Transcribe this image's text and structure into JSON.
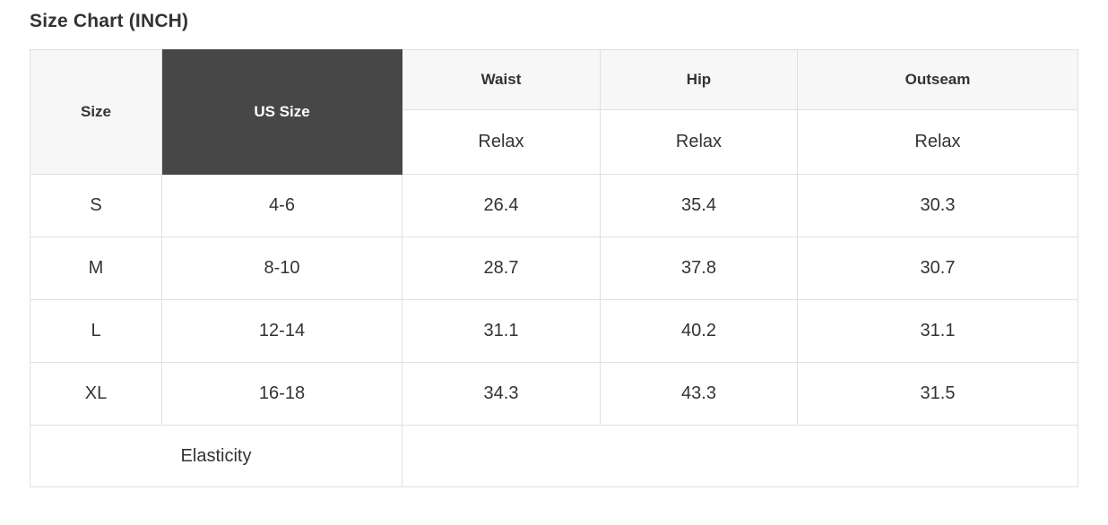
{
  "page": {
    "title": "Size Chart (INCH)"
  },
  "size_chart": {
    "columns": [
      "Size",
      "US Size",
      "Waist",
      "Hip",
      "Outseam"
    ],
    "fit_subheaders": [
      "Relax",
      "Relax",
      "Relax"
    ],
    "rows": [
      {
        "size": "S",
        "us_size": "4-6",
        "waist": "26.4",
        "hip": "35.4",
        "outseam": "30.3"
      },
      {
        "size": "M",
        "us_size": "8-10",
        "waist": "28.7",
        "hip": "37.8",
        "outseam": "30.7"
      },
      {
        "size": "L",
        "us_size": "12-14",
        "waist": "31.1",
        "hip": "40.2",
        "outseam": "31.1"
      },
      {
        "size": "XL",
        "us_size": "16-18",
        "waist": "34.3",
        "hip": "43.3",
        "outseam": "31.5"
      }
    ],
    "footer_row": {
      "label": "Elasticity",
      "value": ""
    }
  },
  "chart_data": {
    "type": "table",
    "title": "Size Chart (INCH)",
    "columns": [
      "Size",
      "US Size",
      "Waist (Relax)",
      "Hip (Relax)",
      "Outseam (Relax)"
    ],
    "rows": [
      [
        "S",
        "4-6",
        26.4,
        35.4,
        30.3
      ],
      [
        "M",
        "8-10",
        28.7,
        37.8,
        30.7
      ],
      [
        "L",
        "12-14",
        31.1,
        40.2,
        31.1
      ],
      [
        "XL",
        "16-18",
        34.3,
        43.3,
        31.5
      ]
    ],
    "footer": [
      "Elasticity",
      ""
    ]
  },
  "colors": {
    "highlight_header_bg": "#474747",
    "highlight_header_text": "#ffffff",
    "header_bg": "#f7f7f7",
    "border": "#e0e0e0",
    "text": "#333333"
  }
}
